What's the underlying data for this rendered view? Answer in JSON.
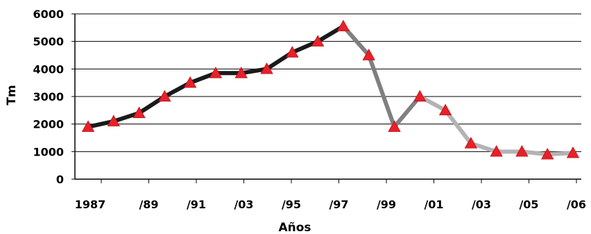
{
  "chart_data": {
    "type": "line",
    "xlabel": "Años",
    "ylabel": "Tm",
    "ylim": [
      0,
      6000
    ],
    "yticks": [
      0,
      1000,
      2000,
      3000,
      4000,
      5000,
      6000
    ],
    "grid": "horizontal",
    "x_tick_labels": [
      "1987",
      "/89",
      "/91",
      "/03",
      "/95",
      "/97",
      "/99",
      "/01",
      "/03",
      "/05",
      "/06"
    ],
    "values": [
      1900,
      2100,
      2400,
      3000,
      3500,
      3850,
      3850,
      4000,
      4600,
      5000,
      5550,
      4500,
      1900,
      3000,
      2500,
      1300,
      1000,
      1000,
      900,
      950
    ],
    "segments": [
      {
        "from": 0,
        "to": 10,
        "color": "#1a1a1a"
      },
      {
        "from": 10,
        "to": 13,
        "color": "#808080"
      },
      {
        "from": 13,
        "to": 19,
        "color": "#b3b3b3"
      }
    ],
    "marker": {
      "shape": "triangle",
      "color": "#e8202a"
    },
    "colors": {
      "grid": "#000000",
      "axis": "#000000"
    }
  }
}
